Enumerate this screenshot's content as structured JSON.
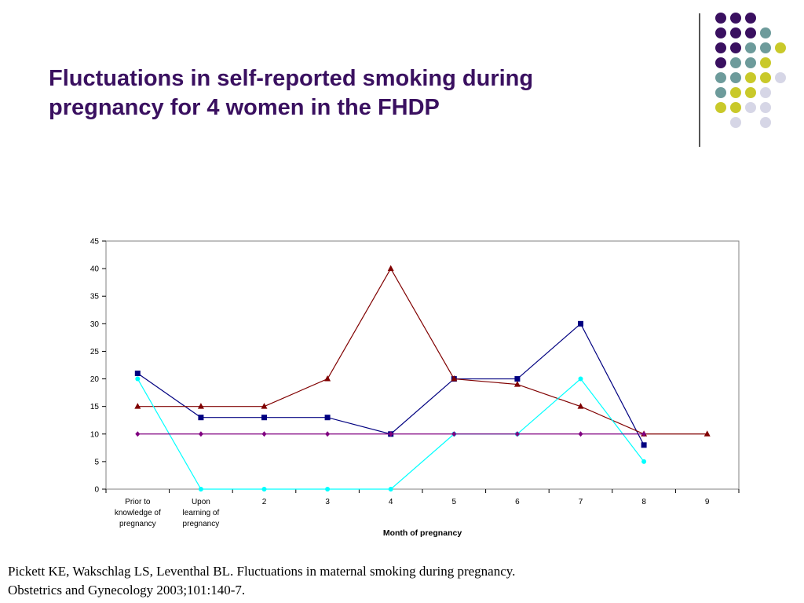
{
  "slide": {
    "title_line1": "Fluctuations in self-reported smoking during",
    "title_line2": "pregnancy for 4 women in the FHDP",
    "citation_line1": "Pickett KE, Wakschlag LS, Leventhal BL.  Fluctuations in maternal smoking during pregnancy.",
    "citation_line2": "Obstetrics and Gynecology 2003;101:140-7."
  },
  "decoration": {
    "colors": {
      "purple": "#3a1060",
      "teal": "#6d9b9b",
      "yellow": "#c9c92a",
      "lavender": "#d6d6e6",
      "divider": "#555555"
    },
    "dot_grid": [
      [
        "purple",
        "purple",
        "purple",
        null,
        null
      ],
      [
        "purple",
        "purple",
        "purple",
        "teal",
        null
      ],
      [
        "purple",
        "purple",
        "teal",
        "teal",
        "yellow"
      ],
      [
        "purple",
        "teal",
        "teal",
        "yellow",
        null
      ],
      [
        "teal",
        "teal",
        "yellow",
        "yellow",
        "lavender"
      ],
      [
        "teal",
        "yellow",
        "yellow",
        "lavender",
        null
      ],
      [
        "yellow",
        "yellow",
        "lavender",
        "lavender",
        null
      ],
      [
        null,
        "lavender",
        null,
        "lavender",
        null
      ]
    ]
  },
  "chart_data": {
    "type": "line",
    "title": "",
    "xlabel": "Month of pregnancy",
    "ylabel": "",
    "ylim": [
      0,
      45
    ],
    "yticks": [
      0,
      5,
      10,
      15,
      20,
      25,
      30,
      35,
      40,
      45
    ],
    "grid": false,
    "legend": "none",
    "categories": [
      "Prior to knowledge of pregnancy",
      "Upon learning of pregnancy",
      "2",
      "3",
      "4",
      "5",
      "6",
      "7",
      "8",
      "9"
    ],
    "category_lines": [
      [
        "Prior to",
        "knowledge of",
        "pregnancy"
      ],
      [
        "Upon",
        "learning of",
        "pregnancy"
      ],
      [
        "2"
      ],
      [
        "3"
      ],
      [
        "4"
      ],
      [
        "5"
      ],
      [
        "6"
      ],
      [
        "7"
      ],
      [
        "8"
      ],
      [
        "9"
      ]
    ],
    "series": [
      {
        "color": "#000080",
        "marker": "square",
        "values": [
          21,
          13,
          13,
          13,
          10,
          20,
          20,
          30,
          8,
          null
        ]
      },
      {
        "color": "#800000",
        "marker": "triangle",
        "values": [
          15,
          15,
          15,
          20,
          40,
          20,
          19,
          15,
          10,
          10
        ]
      },
      {
        "color": "#00ffff",
        "marker": "circle",
        "values": [
          20,
          0,
          0,
          0,
          0,
          10,
          10,
          20,
          5,
          null
        ]
      },
      {
        "color": "#800080",
        "marker": "diamond",
        "values": [
          10,
          10,
          10,
          10,
          10,
          10,
          10,
          10,
          10,
          null
        ]
      }
    ]
  }
}
